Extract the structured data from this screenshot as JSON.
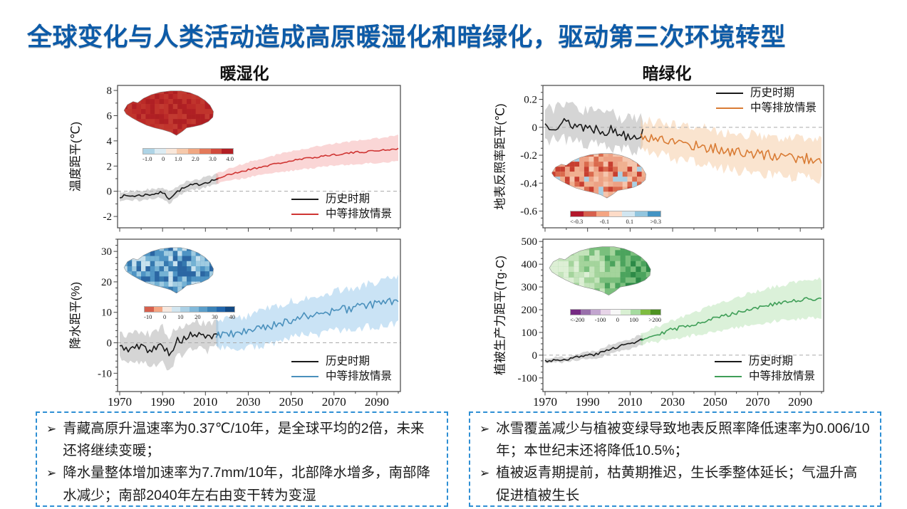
{
  "slide": {
    "title": "全球变化与人类活动造成高原暖湿化和暗绿化，驱动第三次环境转型",
    "title_color": "#0d5ba8",
    "columns": {
      "left": "暖湿化",
      "right": "暗绿化"
    }
  },
  "legend": {
    "historical": "历史时期",
    "scenario": "中等排放情景"
  },
  "notes": {
    "bullet": "➢",
    "left_items": [
      "青藏高原升温速率为0.37℃/10年，是全球平均的2倍，未来还将继续变暖；",
      "降水量整体增加速率为7.7mm/10年，北部降水增多，南部降水减少；南部2040年左右由变干转为变湿"
    ],
    "right_items": [
      "冰雪覆盖减少与植被变绿导致地表反照率降低速率为0.006/10年；本世纪末还将降低10.5%；",
      "植被返青期提前，枯黄期推迟，生长季整体延长；气温升高促进植被生长"
    ]
  },
  "chart_data": [
    {
      "id": "temperature-anomaly",
      "type": "line",
      "ylabel": "温度距平(℃)",
      "ylim": [
        -2.9,
        8.4
      ],
      "yticks": [
        -2,
        0,
        2,
        4,
        6,
        8
      ],
      "y_minor": 1,
      "xlim": [
        1969,
        2101
      ],
      "xticks": [
        1970,
        1990,
        2010,
        2030,
        2050,
        2070,
        2090
      ],
      "x_minor": 10,
      "show_xtick_labels": false,
      "zero_line": true,
      "split_year": 2015,
      "size": [
        450,
        214
      ],
      "margins": {
        "l": 47,
        "r": 6,
        "t": 8,
        "b": 6
      },
      "series": [
        {
          "name": "历史时期",
          "color": "#1a1a1a",
          "band_color": "rgba(150,150,150,0.40)",
          "range": [
            1970,
            2016
          ],
          "seed": 7,
          "noise": 0.12,
          "x": [
            1970,
            1978,
            1984,
            1990,
            1993,
            1998,
            2003,
            2008,
            2012,
            2016
          ],
          "y": [
            -0.4,
            -0.35,
            -0.25,
            -0.1,
            -0.55,
            0.1,
            0.45,
            0.6,
            0.8,
            1.0
          ],
          "band": [
            0.35,
            0.38,
            0.4,
            0.4,
            0.45,
            0.42,
            0.4,
            0.4,
            0.4,
            0.4
          ]
        },
        {
          "name": "中等排放情景",
          "color": "#cf3533",
          "band_color": "rgba(243,164,164,0.45)",
          "range": [
            2015,
            2100
          ],
          "seed": 21,
          "noise": 0.08,
          "x": [
            2015,
            2025,
            2035,
            2045,
            2055,
            2065,
            2075,
            2085,
            2095,
            2100
          ],
          "y": [
            1.0,
            1.5,
            1.9,
            2.25,
            2.55,
            2.8,
            3.0,
            3.15,
            3.3,
            3.4
          ],
          "band": [
            0.4,
            0.55,
            0.65,
            0.72,
            0.8,
            0.85,
            0.9,
            0.95,
            1.0,
            1.05
          ]
        }
      ],
      "inset": {
        "seed": 41,
        "gradient": false,
        "map_palette": [
          "#b01f24",
          "#bb2a28",
          "#c23a31",
          "#ad1f22",
          "#c0342c"
        ],
        "colorbar": {
          "colors": [
            "#aed4e6",
            "#dcebf2",
            "#f9e7da",
            "#f6c9ab",
            "#f0a782",
            "#e3795a",
            "#d14a3c",
            "#b21f24"
          ],
          "labels": [
            "-1.0",
            "0",
            "1.0",
            "2.0",
            "3.0",
            "4.0"
          ]
        }
      }
    },
    {
      "id": "precipitation-anomaly",
      "type": "line",
      "ylabel": "降水距平(%)",
      "ylim": [
        -16,
        34
      ],
      "yticks": [
        -10,
        0,
        10,
        20,
        30
      ],
      "y_minor": 2,
      "xlim": [
        1969,
        2101
      ],
      "xticks": [
        1970,
        1990,
        2010,
        2030,
        2050,
        2070,
        2090
      ],
      "x_minor": 10,
      "show_xtick_labels": true,
      "zero_line": true,
      "split_year": 2015,
      "size": [
        450,
        246
      ],
      "margins": {
        "l": 47,
        "r": 6,
        "t": 6,
        "b": 26
      },
      "series": [
        {
          "name": "历史时期",
          "color": "#1a1a1a",
          "band_color": "rgba(150,150,150,0.40)",
          "range": [
            1970,
            2016
          ],
          "seed": 5,
          "noise": 1.3,
          "x": [
            1970,
            1975,
            1980,
            1985,
            1990,
            1993,
            1997,
            2001,
            2005,
            2010,
            2016
          ],
          "y": [
            -1.5,
            -2.0,
            -1.2,
            -2.5,
            -0.5,
            -3.5,
            0.5,
            1.5,
            3.0,
            1.5,
            3.0
          ],
          "band": [
            4,
            4.5,
            5,
            5,
            5.5,
            5.5,
            5,
            4.5,
            4.5,
            4.5,
            4
          ]
        },
        {
          "name": "中等排放情景",
          "color": "#4a90bc",
          "band_color": "rgba(150,200,235,0.50)",
          "range": [
            2015,
            2100
          ],
          "seed": 9,
          "noise": 1.4,
          "x": [
            2015,
            2025,
            2035,
            2045,
            2055,
            2065,
            2075,
            2085,
            2095,
            2100
          ],
          "y": [
            2.5,
            3.0,
            4.5,
            6.5,
            8.5,
            9.5,
            11.0,
            12.0,
            13.5,
            14.0
          ],
          "band": [
            4.5,
            5,
            5.5,
            6,
            6,
            6.5,
            6.5,
            7,
            7.5,
            7.5
          ]
        }
      ],
      "inset": {
        "seed": 55,
        "gradient": false,
        "map_palette": [
          "#9fcbe1",
          "#74b2d4",
          "#4f94c4",
          "#3679af",
          "#c7e1ee",
          "#2b66a3"
        ],
        "colorbar": {
          "colors": [
            "#d6604d",
            "#f4a582",
            "#f6e8df",
            "#d2e6f0",
            "#abd0e5",
            "#82b9da",
            "#5b9ec9",
            "#3a82b7",
            "#2166ac",
            "#124984"
          ],
          "labels": [
            "-10",
            "0",
            "10",
            "20",
            "30",
            "40"
          ]
        }
      }
    },
    {
      "id": "albedo-anomaly",
      "type": "line",
      "ylabel": "地表反照率距平(℃)",
      "ylim": [
        -0.72,
        0.3
      ],
      "yticks": [
        0.2,
        0,
        -0.2,
        -0.4,
        -0.6
      ],
      "y_minor": 0.05,
      "xlim": [
        1969,
        2101
      ],
      "xticks": [
        1970,
        1990,
        2010,
        2030,
        2050,
        2070,
        2090
      ],
      "x_minor": 10,
      "show_xtick_labels": false,
      "zero_line": true,
      "split_year": 2015,
      "size": [
        452,
        214
      ],
      "margins": {
        "l": 52,
        "r": 6,
        "t": 8,
        "b": 6
      },
      "series": [
        {
          "name": "历史时期",
          "color": "#1a1a1a",
          "band_color": "rgba(150,150,150,0.40)",
          "range": [
            1970,
            2016
          ],
          "seed": 13,
          "noise": 0.045,
          "x": [
            1970,
            1980,
            1990,
            2000,
            2008,
            2016
          ],
          "y": [
            0.02,
            0.03,
            0.0,
            -0.02,
            -0.05,
            -0.05
          ],
          "band": [
            0.11,
            0.12,
            0.12,
            0.12,
            0.11,
            0.11
          ]
        },
        {
          "name": "中等排放情景",
          "color": "#d97c35",
          "band_color": "rgba(246,205,168,0.55)",
          "range": [
            2015,
            2100
          ],
          "seed": 17,
          "noise": 0.04,
          "x": [
            2015,
            2030,
            2045,
            2060,
            2075,
            2090,
            2100
          ],
          "y": [
            -0.06,
            -0.1,
            -0.14,
            -0.18,
            -0.2,
            -0.22,
            -0.23
          ],
          "band": [
            0.11,
            0.12,
            0.13,
            0.13,
            0.14,
            0.14,
            0.15
          ]
        }
      ],
      "inset": {
        "seed": 77,
        "gradient": false,
        "map_palette": [
          "#c73f30",
          "#da6a4d",
          "#eda184",
          "#f5c5ad",
          "#f0b090",
          "#a9cfe3"
        ],
        "colorbar": {
          "colors": [
            "#b2182b",
            "#d6604d",
            "#f4a582",
            "#fddbc7",
            "#d1e5f0",
            "#92c5de",
            "#4393c3"
          ],
          "labels": [
            "<-0.3",
            "-0.1",
            "0.1",
            ">0.3"
          ]
        }
      }
    },
    {
      "id": "vegetation-productivity-anomaly",
      "type": "line",
      "ylabel": "植被生产力距平(Tg·C)",
      "ylim": [
        -160,
        510
      ],
      "yticks": [
        -100,
        0,
        100,
        200,
        300,
        400,
        500
      ],
      "y_minor": 25,
      "xlim": [
        1969,
        2101
      ],
      "xticks": [
        1970,
        1990,
        2010,
        2030,
        2050,
        2070,
        2090
      ],
      "x_minor": 10,
      "show_xtick_labels": true,
      "zero_line": true,
      "split_year": 2015,
      "size": [
        452,
        246
      ],
      "margins": {
        "l": 52,
        "r": 6,
        "t": 6,
        "b": 26
      },
      "series": [
        {
          "name": "历史时期",
          "color": "#1a1a1a",
          "band_color": "rgba(150,150,150,0.40)",
          "range": [
            1970,
            2016
          ],
          "seed": 3,
          "noise": 6,
          "x": [
            1970,
            1980,
            1990,
            1995,
            2000,
            2005,
            2010,
            2016
          ],
          "y": [
            -25,
            -18,
            0,
            5,
            25,
            40,
            50,
            70
          ],
          "band": [
            12,
            12,
            15,
            18,
            20,
            22,
            22,
            25
          ]
        },
        {
          "name": "中等排放情景",
          "color": "#3f9e57",
          "band_color": "rgba(190,230,185,0.55)",
          "range": [
            2015,
            2100
          ],
          "seed": 29,
          "noise": 9,
          "x": [
            2015,
            2025,
            2035,
            2045,
            2055,
            2065,
            2075,
            2085,
            2095,
            2100
          ],
          "y": [
            70,
            100,
            125,
            150,
            175,
            200,
            220,
            235,
            248,
            250
          ],
          "band": [
            25,
            35,
            45,
            55,
            62,
            68,
            74,
            80,
            84,
            85
          ]
        }
      ],
      "inset": {
        "seed": 91,
        "gradient": true,
        "map_palette": [
          "#ddefd5",
          "#c4e4bb",
          "#a4d49c",
          "#7abf7d",
          "#4ba35d",
          "#2c8a47"
        ],
        "colorbar": {
          "colors": [
            "#762a83",
            "#9970ab",
            "#c2a5cf",
            "#e7d4e8",
            "#f7f7f7",
            "#d9f0d3",
            "#a6dba0",
            "#7fbc41",
            "#4d9221"
          ],
          "labels": [
            "<-200",
            "-100",
            "0",
            "100",
            ">200"
          ]
        }
      }
    }
  ]
}
